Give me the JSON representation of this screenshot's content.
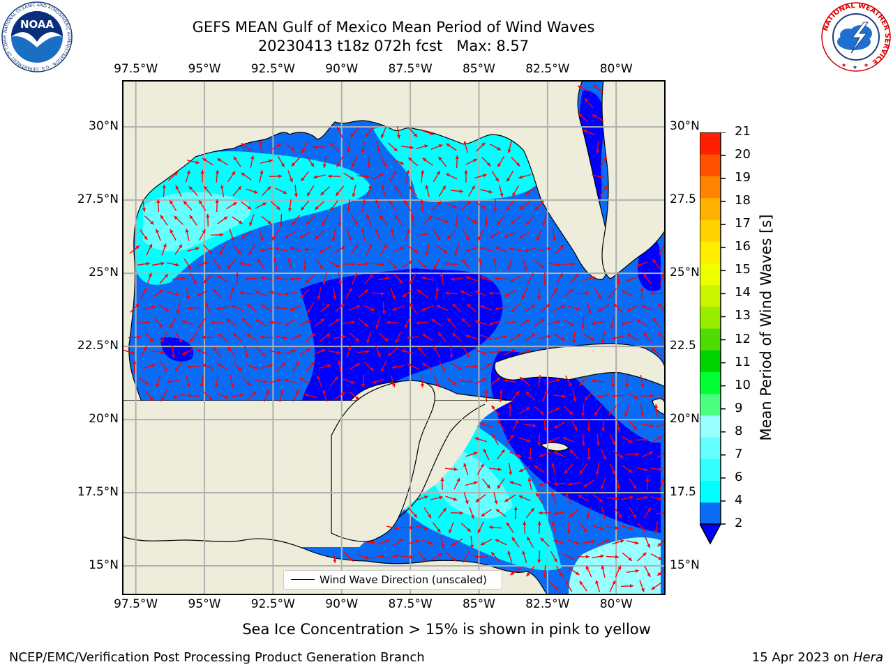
{
  "title": {
    "line1": "GEFS MEAN Gulf of Mexico Mean Period of Wind Waves",
    "line2": "20230413 t18z 072h fcst   Max: 8.57"
  },
  "map": {
    "lon_ticks": [
      "97.5°W",
      "95°W",
      "92.5°W",
      "90°W",
      "87.5°W",
      "85°W",
      "82.5°W",
      "80°W"
    ],
    "lat_ticks_left": [
      "30°N",
      "27.5°N",
      "25°N",
      "22.5°N",
      "20°N",
      "17.5°N",
      "15°N"
    ],
    "lat_ticks_right": [
      "30°N",
      "27.5",
      "25°N",
      "22.5",
      "20°N",
      "17.5",
      "15°N"
    ],
    "lon_range": [
      -98,
      -78.2
    ],
    "lat_range": [
      14,
      31.6
    ],
    "land_color": "#eeeddc",
    "arrow_color": "#ff0000",
    "grid_color": "#b0b0b0"
  },
  "legend": {
    "label": "Wind Wave Direction (unscaled)"
  },
  "colorbar": {
    "label": "Mean Period of Wind Waves [s]",
    "ticks": [
      "2",
      "4",
      "6",
      "7",
      "8",
      "9",
      "10",
      "11",
      "12",
      "13",
      "14",
      "15",
      "16",
      "17",
      "18",
      "19",
      "20",
      "21"
    ],
    "colors": [
      "#0a6cf5",
      "#00ffff",
      "#33ffff",
      "#66ffff",
      "#99ffff",
      "#4dff80",
      "#00ff33",
      "#00d400",
      "#4ddd00",
      "#99ee00",
      "#ccf500",
      "#eeff00",
      "#ffee00",
      "#ffd200",
      "#ffb000",
      "#ff8400",
      "#ff5200",
      "#ff2000"
    ],
    "extend_color": "#0000ff"
  },
  "ice_note": "Sea Ice Concentration > 15% is shown in pink to yellow",
  "footer": {
    "left": "NCEP/EMC/Verification Post Processing Product Generation Branch",
    "date": "15 Apr 2023 on ",
    "host": "Hera"
  },
  "logos": {
    "noaa": "NOAA",
    "noaa_ring": "NATIONAL OCEANIC AND ATMOSPHERIC ADMINISTRATION · U.S. DEPARTMENT OF COMMERCE",
    "nws_ring": "NATIONAL WEATHER SERVICE"
  }
}
